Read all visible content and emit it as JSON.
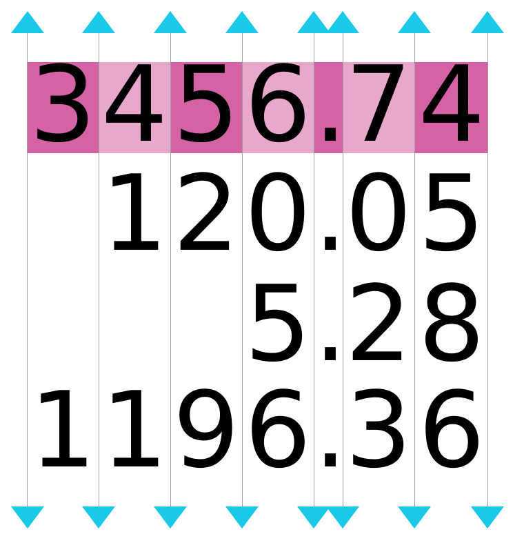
{
  "numbers": [
    [
      "3",
      "4",
      "5",
      "6",
      ".",
      "7",
      "4"
    ],
    [
      "",
      "1",
      "2",
      "0",
      ".",
      "0",
      "5"
    ],
    [
      "",
      "",
      "",
      "5",
      ".",
      "2",
      "8"
    ],
    [
      "1",
      "1",
      "9",
      "6",
      ".",
      "3",
      "6"
    ]
  ],
  "highlight_colors": {
    "dark": "#d462a4",
    "light": "#e8a8cc"
  },
  "guide_color": "#a0a0a0",
  "arrow_color": "#1ac8e8",
  "arrow_icon": "triangle-icon"
}
